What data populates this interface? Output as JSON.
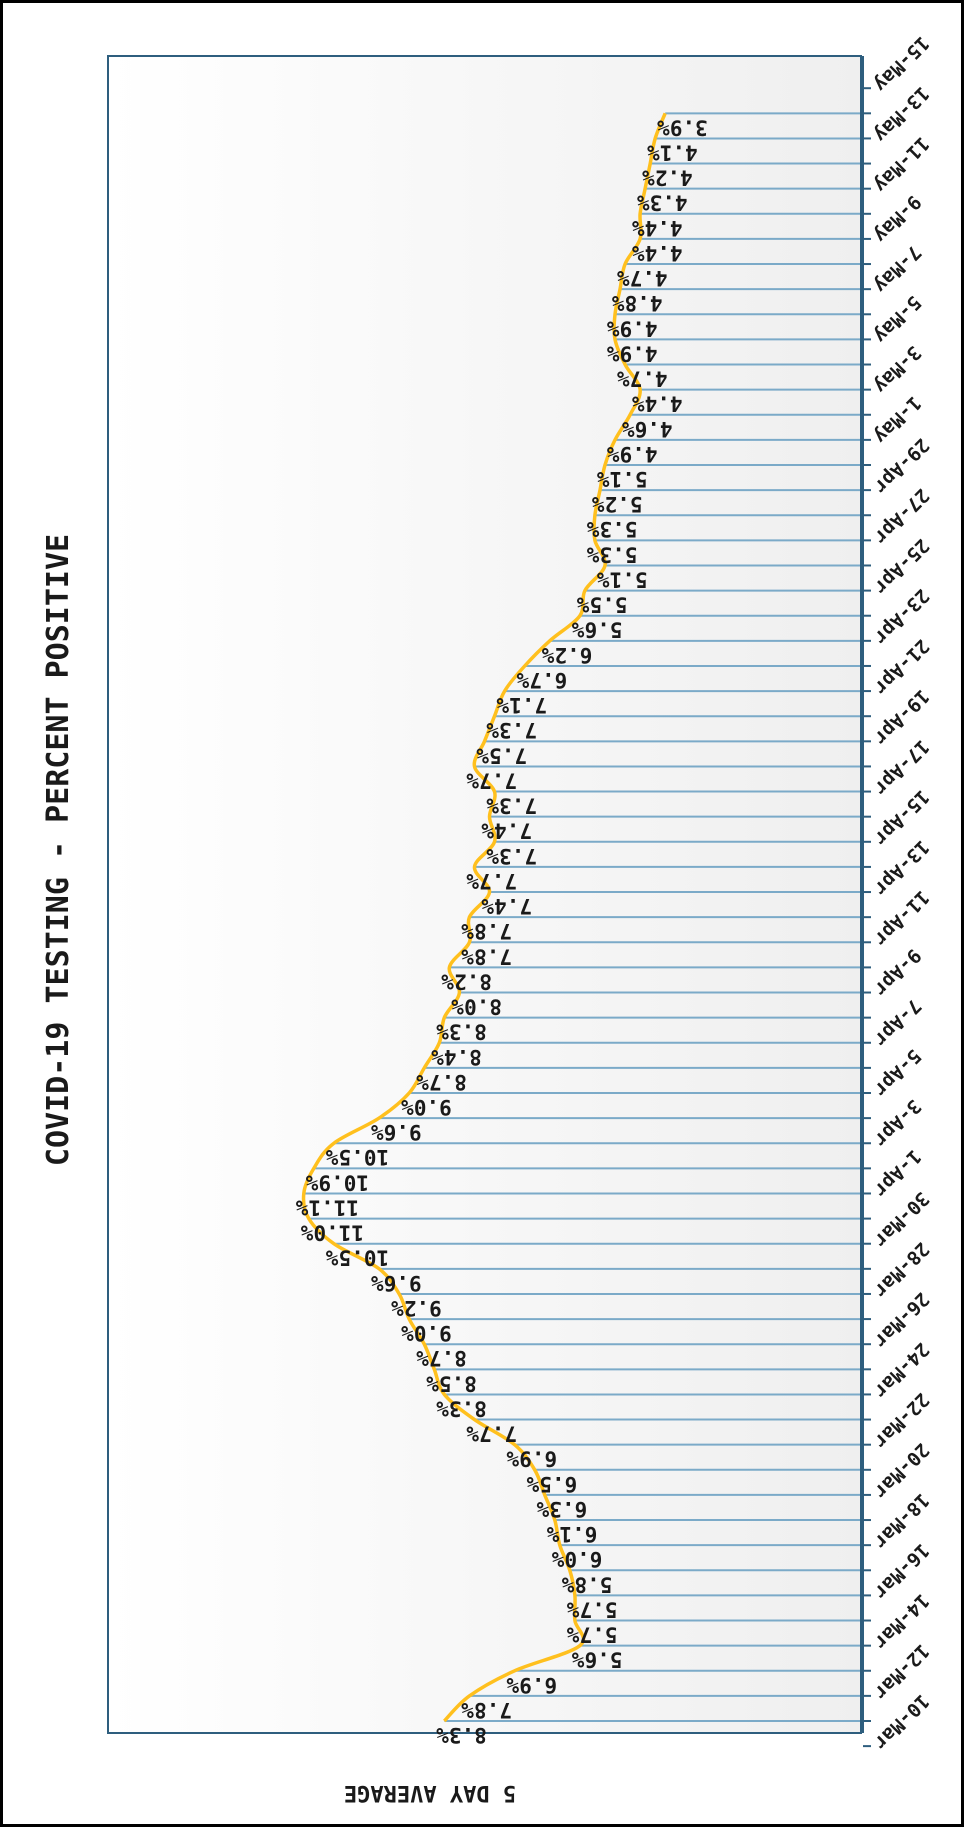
{
  "chart_data": {
    "type": "line",
    "title": "COVID-19 TESTING - PERCENT POSITIVE",
    "ylabel": "5 DAY AVERAGE",
    "xlabel": "",
    "x_tick_labels": [
      "10-Mar",
      "12-Mar",
      "14-Mar",
      "16-Mar",
      "18-Mar",
      "20-Mar",
      "22-Mar",
      "24-Mar",
      "26-Mar",
      "28-Mar",
      "30-Mar",
      "1-Apr",
      "3-Apr",
      "5-Apr",
      "7-Apr",
      "9-Apr",
      "11-Apr",
      "13-Apr",
      "15-Apr",
      "17-Apr",
      "19-Apr",
      "21-Apr",
      "23-Apr",
      "25-Apr",
      "27-Apr",
      "29-Apr",
      "1-May",
      "3-May",
      "5-May",
      "7-May",
      "9-May",
      "11-May",
      "13-May",
      "15-May"
    ],
    "x": [
      "11-Mar",
      "12-Mar",
      "13-Mar",
      "14-Mar",
      "15-Mar",
      "16-Mar",
      "17-Mar",
      "18-Mar",
      "19-Mar",
      "20-Mar",
      "21-Mar",
      "22-Mar",
      "23-Mar",
      "24-Mar",
      "25-Mar",
      "26-Mar",
      "27-Mar",
      "28-Mar",
      "29-Mar",
      "30-Mar",
      "31-Mar",
      "1-Apr",
      "2-Apr",
      "3-Apr",
      "4-Apr",
      "5-Apr",
      "6-Apr",
      "7-Apr",
      "8-Apr",
      "9-Apr",
      "10-Apr",
      "11-Apr",
      "12-Apr",
      "13-Apr",
      "14-Apr",
      "15-Apr",
      "16-Apr",
      "17-Apr",
      "18-Apr",
      "19-Apr",
      "20-Apr",
      "21-Apr",
      "22-Apr",
      "23-Apr",
      "24-Apr",
      "25-Apr",
      "26-Apr",
      "27-Apr",
      "28-Apr",
      "29-Apr",
      "30-Apr",
      "1-May",
      "2-May",
      "3-May",
      "4-May",
      "5-May",
      "6-May",
      "7-May",
      "8-May",
      "9-May",
      "10-May",
      "11-May",
      "12-May",
      "13-May",
      "14-May"
    ],
    "values": [
      8.3,
      7.8,
      6.9,
      5.6,
      5.7,
      5.7,
      5.8,
      6.0,
      6.1,
      6.3,
      6.5,
      6.9,
      7.7,
      8.3,
      8.5,
      8.7,
      9.0,
      9.2,
      9.6,
      10.5,
      11.0,
      11.1,
      10.9,
      10.5,
      9.6,
      9.0,
      8.7,
      8.4,
      8.3,
      8.0,
      8.2,
      7.8,
      7.8,
      7.4,
      7.7,
      7.3,
      7.4,
      7.3,
      7.7,
      7.5,
      7.3,
      7.1,
      6.7,
      6.2,
      5.6,
      5.5,
      5.1,
      5.3,
      5.3,
      5.2,
      5.1,
      4.9,
      4.6,
      4.4,
      4.7,
      4.9,
      4.9,
      4.8,
      4.7,
      4.4,
      4.4,
      4.3,
      4.2,
      4.1,
      3.9
    ],
    "data_labels": [
      "8.3%",
      "7.8%",
      "6.9%",
      "5.6%",
      "5.7%",
      "5.7%",
      "5.8%",
      "6.0%",
      "6.1%",
      "6.3%",
      "6.5%",
      "6.9%",
      "7.7%",
      "8.3%",
      "8.5%",
      "8.7%",
      "9.0%",
      "9.2%",
      "9.6%",
      "10.5%",
      "11.0%",
      "11.1%",
      "10.9%",
      "10.5%",
      "9.6%",
      "9.0%",
      "8.7%",
      "8.4%",
      "8.3%",
      "8.0%",
      "8.2%",
      "7.8%",
      "7.8%",
      "7.4%",
      "7.7%",
      "7.3%",
      "7.4%",
      "7.3%",
      "7.7%",
      "7.5%",
      "7.3%",
      "7.1%",
      "6.7%",
      "6.2%",
      "5.6%",
      "5.5%",
      "5.1%",
      "5.3%",
      "5.3%",
      "5.2%",
      "5.1%",
      "4.9%",
      "4.6%",
      "4.4%",
      "4.7%",
      "4.9%",
      "4.9%",
      "4.8%",
      "4.7%",
      "4.4%",
      "4.4%",
      "4.3%",
      "4.2%",
      "4.1%",
      "3.9%"
    ],
    "ylim": [
      0,
      15
    ],
    "orientation": "rotated-90",
    "grid": false,
    "colors": {
      "line": "#FFC01E",
      "drop_lines": "#7BAAC8",
      "plot_border": "#2E5E7E",
      "plot_bg_light": "#FFFFFF",
      "plot_bg_dark": "#EFEFEF"
    }
  }
}
